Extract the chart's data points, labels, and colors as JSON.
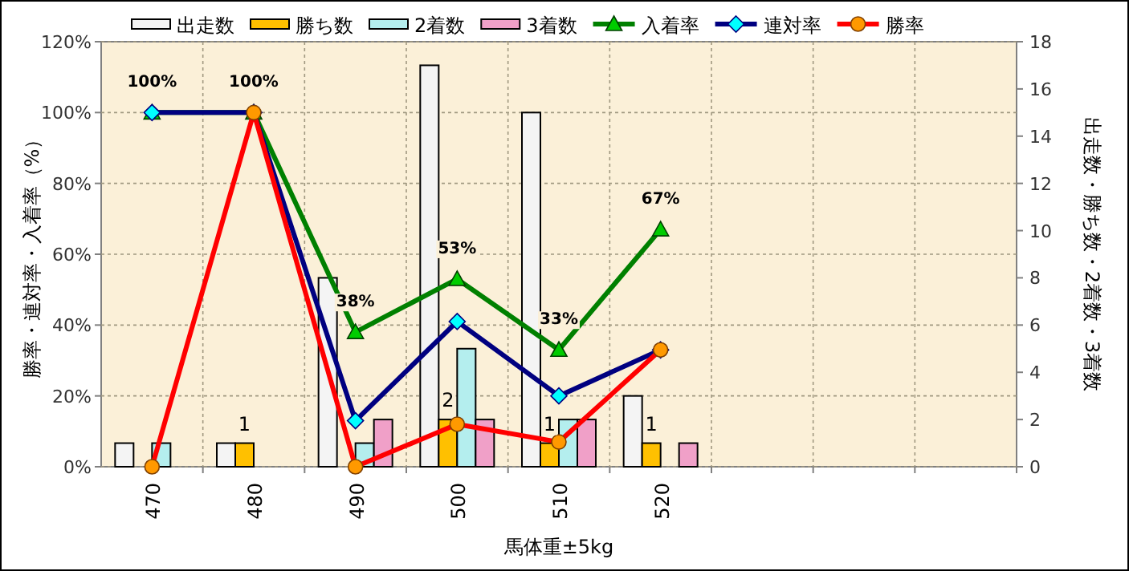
{
  "chart_data": {
    "type": "bar",
    "xlabel": "馬体重±5kg",
    "ylabel": "勝率・連対率・入着率（%）",
    "y2label": "出走数・勝ち数・2着数・3着数",
    "categories": [
      "470",
      "480",
      "490",
      "500",
      "510",
      "520",
      null,
      null,
      null
    ],
    "series": [
      {
        "name": "出走数",
        "axis": "y2",
        "color": "#f4f4f4",
        "values": [
          1,
          1,
          8,
          17,
          15,
          3,
          null,
          null,
          null
        ]
      },
      {
        "name": "勝ち数",
        "axis": "y2",
        "color": "#ffc000",
        "values": [
          0,
          1,
          0,
          2,
          1,
          1,
          null,
          null,
          null
        ],
        "value_labels": [
          null,
          "1",
          null,
          "2",
          "1",
          "1",
          null,
          null,
          null
        ]
      },
      {
        "name": "2着数",
        "axis": "y2",
        "color": "#b4eeee",
        "values": [
          1,
          0,
          1,
          5,
          2,
          0,
          null,
          null,
          null
        ]
      },
      {
        "name": "3着数",
        "axis": "y2",
        "color": "#f0a0c8",
        "values": [
          0,
          0,
          2,
          2,
          2,
          1,
          null,
          null,
          null
        ]
      },
      {
        "name": "入着率",
        "type": "line",
        "marker": "triangle",
        "color": "#008000",
        "values": [
          100,
          100,
          38,
          53,
          33,
          67,
          null,
          null,
          null
        ],
        "value_labels": [
          "100%",
          "100%",
          "38%",
          "53%",
          "33%",
          "67%",
          null,
          null,
          null
        ]
      },
      {
        "name": "連対率",
        "type": "line",
        "marker": "diamond",
        "color": "#000080",
        "values": [
          100,
          100,
          13,
          41,
          20,
          33,
          null,
          null,
          null
        ]
      },
      {
        "name": "勝率",
        "type": "line",
        "marker": "circle",
        "color": "#ff0000",
        "values": [
          0,
          100,
          0,
          12,
          7,
          33,
          null,
          null,
          null
        ]
      }
    ],
    "ylim": [
      0,
      120
    ],
    "yticks": [
      {
        "value": 0,
        "label": "0%"
      },
      {
        "value": 20,
        "label": "20%"
      },
      {
        "value": 40,
        "label": "40%"
      },
      {
        "value": 60,
        "label": "60%"
      },
      {
        "value": 80,
        "label": "80%"
      },
      {
        "value": 100,
        "label": "100%"
      },
      {
        "value": 120,
        "label": "120%"
      }
    ],
    "y2lim": [
      0,
      18
    ],
    "y2ticks": [
      0,
      2,
      4,
      6,
      8,
      10,
      12,
      14,
      16,
      18
    ],
    "grid": true,
    "legend": "top"
  }
}
